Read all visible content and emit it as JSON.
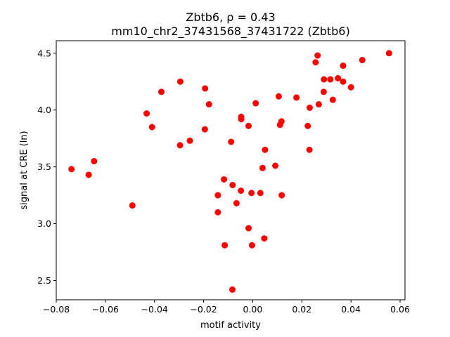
{
  "chart_data": {
    "type": "scatter",
    "title_line1": "Zbtb6, ρ = 0.43",
    "title_line2": "mm10_chr2_37431568_37431722 (Zbtb6)",
    "xlabel": "motif activity",
    "ylabel": "signal at CRE (ln)",
    "xlim": [
      -0.08,
      0.062
    ],
    "ylim": [
      2.33,
      4.61
    ],
    "xticks": [
      -0.08,
      -0.06,
      -0.04,
      -0.02,
      0.0,
      0.02,
      0.04,
      0.06
    ],
    "xtick_labels": [
      "−0.08",
      "−0.06",
      "−0.04",
      "−0.02",
      "0.00",
      "0.02",
      "0.04",
      "0.06"
    ],
    "yticks": [
      2.5,
      3.0,
      3.5,
      4.0,
      4.5
    ],
    "ytick_labels": [
      "2.5",
      "3.0",
      "3.5",
      "4.0",
      "4.5"
    ],
    "grid": false,
    "marker_color": "#ff0000",
    "points": [
      {
        "x": -0.0738,
        "y": 3.48
      },
      {
        "x": -0.0668,
        "y": 3.43
      },
      {
        "x": -0.0646,
        "y": 3.55
      },
      {
        "x": -0.049,
        "y": 3.16
      },
      {
        "x": -0.0432,
        "y": 3.97
      },
      {
        "x": -0.041,
        "y": 3.85
      },
      {
        "x": -0.0372,
        "y": 4.16
      },
      {
        "x": -0.0295,
        "y": 4.25
      },
      {
        "x": -0.0296,
        "y": 3.69
      },
      {
        "x": -0.0256,
        "y": 3.73
      },
      {
        "x": -0.0194,
        "y": 4.19
      },
      {
        "x": -0.0195,
        "y": 3.83
      },
      {
        "x": -0.0178,
        "y": 4.05
      },
      {
        "x": -0.0142,
        "y": 3.25
      },
      {
        "x": -0.0142,
        "y": 3.1
      },
      {
        "x": -0.0117,
        "y": 3.39
      },
      {
        "x": -0.0114,
        "y": 2.81
      },
      {
        "x": -0.0088,
        "y": 3.72
      },
      {
        "x": -0.0082,
        "y": 3.34
      },
      {
        "x": -0.0083,
        "y": 2.42
      },
      {
        "x": -0.0066,
        "y": 3.18
      },
      {
        "x": -0.0047,
        "y": 3.94
      },
      {
        "x": -0.0047,
        "y": 3.92
      },
      {
        "x": -0.0048,
        "y": 3.29
      },
      {
        "x": -0.0017,
        "y": 3.86
      },
      {
        "x": -0.0017,
        "y": 2.96
      },
      {
        "x": -0.0005,
        "y": 3.27
      },
      {
        "x": -0.0003,
        "y": 2.81
      },
      {
        "x": 0.0012,
        "y": 4.06
      },
      {
        "x": 0.0031,
        "y": 3.27
      },
      {
        "x": 0.004,
        "y": 3.49
      },
      {
        "x": 0.005,
        "y": 3.65
      },
      {
        "x": 0.0047,
        "y": 2.87
      },
      {
        "x": 0.0092,
        "y": 3.51
      },
      {
        "x": 0.0106,
        "y": 4.12
      },
      {
        "x": 0.0111,
        "y": 3.87
      },
      {
        "x": 0.0117,
        "y": 3.9
      },
      {
        "x": 0.0118,
        "y": 3.25
      },
      {
        "x": 0.0178,
        "y": 4.11
      },
      {
        "x": 0.0224,
        "y": 3.86
      },
      {
        "x": 0.0232,
        "y": 4.02
      },
      {
        "x": 0.0231,
        "y": 3.65
      },
      {
        "x": 0.0256,
        "y": 4.42
      },
      {
        "x": 0.0264,
        "y": 4.48
      },
      {
        "x": 0.0269,
        "y": 4.05
      },
      {
        "x": 0.029,
        "y": 4.27
      },
      {
        "x": 0.0289,
        "y": 4.16
      },
      {
        "x": 0.0316,
        "y": 4.27
      },
      {
        "x": 0.0326,
        "y": 4.09
      },
      {
        "x": 0.0347,
        "y": 4.28
      },
      {
        "x": 0.0368,
        "y": 4.39
      },
      {
        "x": 0.0368,
        "y": 4.25
      },
      {
        "x": 0.04,
        "y": 4.2
      },
      {
        "x": 0.0446,
        "y": 4.44
      },
      {
        "x": 0.0555,
        "y": 4.5
      }
    ]
  }
}
